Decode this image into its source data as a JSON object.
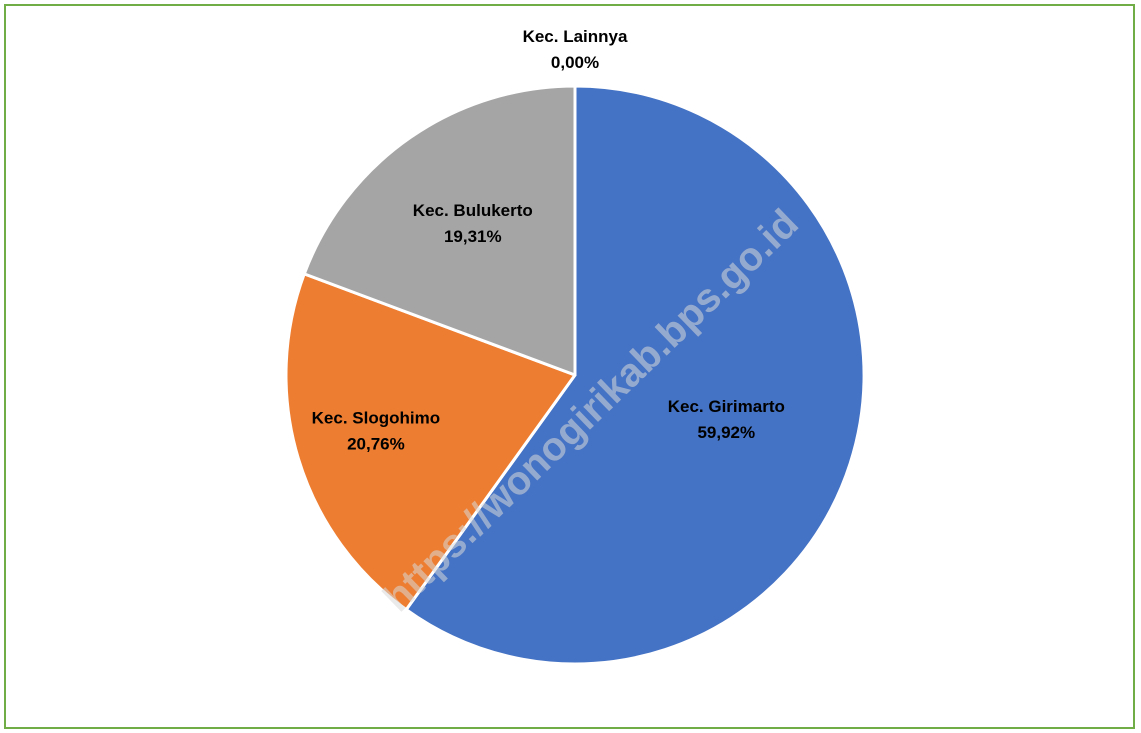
{
  "chart_data": {
    "type": "pie",
    "slices": [
      {
        "label": "Kec. Girimarto",
        "value": 59.92,
        "value_text": "59,92%",
        "color": "#4472c4"
      },
      {
        "label": "Kec. Slogohimo",
        "value": 20.76,
        "value_text": "20,76%",
        "color": "#ed7d31"
      },
      {
        "label": "Kec. Bulukerto",
        "value": 19.31,
        "value_text": "19,31%",
        "color": "#a5a5a5"
      },
      {
        "label": "Kec. Lainnya",
        "value": 0.0,
        "value_text": "0,00%",
        "color": "#ffc000"
      }
    ],
    "start_angle": "12 o'clock",
    "direction": "clockwise"
  },
  "watermark": {
    "text": "https://wonogirikab.bps.go.id"
  },
  "frame": {
    "border_color": "#70ad47"
  }
}
